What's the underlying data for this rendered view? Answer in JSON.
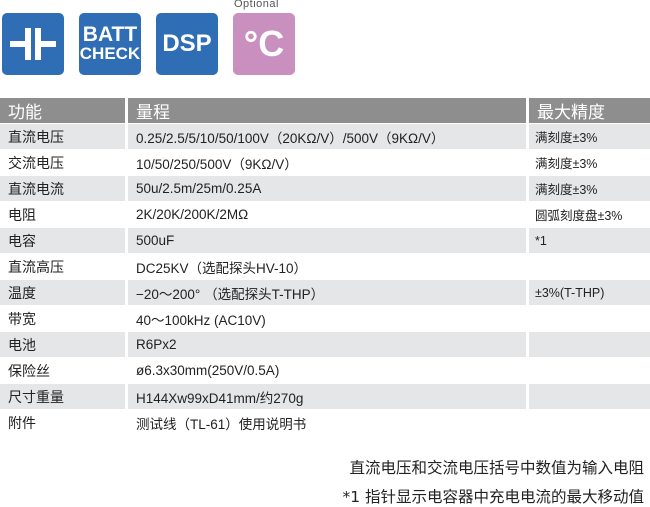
{
  "icons": [
    {
      "name": "capacitor-icon"
    },
    {
      "name": "batt-check-icon",
      "line1": "BATT",
      "line2": "CHECK"
    },
    {
      "name": "dsp-icon",
      "label": "DSP"
    },
    {
      "name": "celsius-icon",
      "label": "°C",
      "note": "Optional"
    }
  ],
  "colors": {
    "icon_blue": "#2f6db5",
    "icon_pink": "#c98fbf",
    "header_gray": "#8e8e8e",
    "row_shade": "#e4e6e8"
  },
  "table": {
    "headers": [
      "功能",
      "量程",
      "最大精度"
    ],
    "rows": [
      [
        "直流电压",
        "0.25/2.5/5/10/50/100V（20KΩ/V）/500V（9KΩ/V）",
        "满刻度±3%"
      ],
      [
        "交流电压",
        "10/50/250/500V（9KΩ/V）",
        "满刻度±3%"
      ],
      [
        "直流电流",
        "50u/2.5m/25m/0.25A",
        "满刻度±3%"
      ],
      [
        "电阻",
        "2K/20K/200K/2MΩ",
        "圆弧刻度盘±3%"
      ],
      [
        "电容",
        "500uF",
        "*1"
      ],
      [
        "直流高压",
        "DC25KV（选配探头HV-10）",
        ""
      ],
      [
        "温度",
        "−20～200° （选配探头T-THP）",
        "±3%(T-THP)"
      ],
      [
        "带宽",
        "40～100kHz (AC10V)",
        ""
      ],
      [
        "电池",
        "R6Px2",
        ""
      ],
      [
        "保险丝",
        "ø6.3x30mm(250V/0.5A)",
        ""
      ],
      [
        "尺寸重量",
        "H144Xw99xD41mm/约270g",
        ""
      ],
      [
        "附件",
        "测试线（TL-61）使用说明书",
        ""
      ]
    ]
  },
  "notes": [
    "直流电压和交流电压括号中数值为输入电阻",
    "*1 指针显示电容器中充电电流的最大移动值"
  ]
}
